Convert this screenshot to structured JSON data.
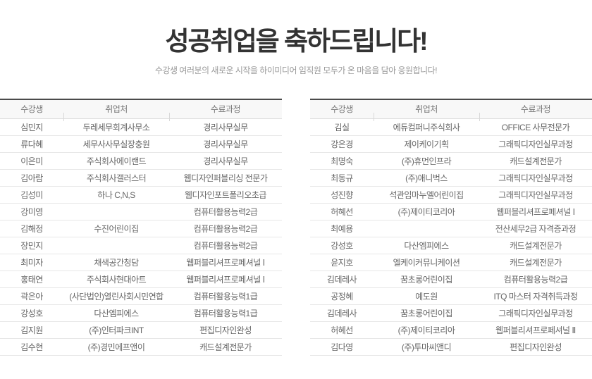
{
  "header": {
    "title": "성공취업을 축하드립니다!",
    "subtitle": "수강생 여러분의 새로운 시작을 하이미디어 임직원 모두가 온 마음을 담아 응원합니다!"
  },
  "colors": {
    "title": "#333333",
    "subtitle": "#9a9a9a",
    "table_top_border": "#4a4a4a",
    "header_bg": "#f8f8f8",
    "header_text": "#777777",
    "row_border": "#e7e7e7",
    "cell_text": "#666666"
  },
  "tables": [
    {
      "name": "left",
      "columns": [
        "수강생",
        "취업처",
        "수료과정"
      ],
      "rows": [
        [
          "심민지",
          "두레세무회계사무소",
          "경리사무실무"
        ],
        [
          "류다혜",
          "세무사사무실장충원",
          "경리사무실무"
        ],
        [
          "이은미",
          "주식회사에이랜드",
          "경리사무실무"
        ],
        [
          "김아람",
          "주식회사갤러스터",
          "웹디자인퍼블리싱 전문가"
        ],
        [
          "김성미",
          "하나  C,N,S",
          "웹디자인포트폴리오초급"
        ],
        [
          "강미영",
          "",
          "컴퓨터활용능력2급"
        ],
        [
          "김해정",
          "수진어린이집",
          "컴퓨터활용능력2급"
        ],
        [
          "장민지",
          "",
          "컴퓨터활용능력2급"
        ],
        [
          "최미자",
          "채색공간청담",
          "웹퍼블리셔프로페셔널 Ⅰ"
        ],
        [
          "홍태연",
          "주식회사현대아트",
          "웹퍼블리셔프로페셔널 Ⅰ"
        ],
        [
          "곽은아",
          "(사단법인)열린사회시민연합",
          "컴퓨터활용능력1급"
        ],
        [
          "강성호",
          "다산엠피에스",
          "컴퓨터활용능력1급"
        ],
        [
          "김지원",
          "(주)인터파크INT",
          "편집디자인완성"
        ],
        [
          "김수현",
          "(주)경민에프앤이",
          "캐드설계전문가"
        ]
      ]
    },
    {
      "name": "right",
      "columns": [
        "수강생",
        "취업처",
        "수료과정"
      ],
      "rows": [
        [
          "김실",
          "에듀컴퍼니주식회사",
          "OFFICE 사무전문가"
        ],
        [
          "강은경",
          "제이케이기획",
          "그래픽디자인실무과정"
        ],
        [
          "최명숙",
          "(주)휴먼인프라",
          "캐드설계전문가"
        ],
        [
          "최동규",
          "(주)애니벅스",
          "그래픽디자인실무과정"
        ],
        [
          "성진향",
          "석관임마누엘어린이집",
          "그래픽디자인실무과정"
        ],
        [
          "허혜선",
          "(주)제이티코리아",
          "웹퍼블리셔프로페셔널 Ⅰ"
        ],
        [
          "최예용",
          "",
          "전산세무2급 자격증과정"
        ],
        [
          "강성호",
          "다산엠피에스",
          "캐드설계전문가"
        ],
        [
          "윤지호",
          "엘케이커뮤니케이션",
          "캐드설계전문가"
        ],
        [
          "김데레사",
          "꿈초롱어린이집",
          "컴퓨터활용능력2급"
        ],
        [
          "공정혜",
          "예도원",
          "ITQ 마스터 자격취득과정"
        ],
        [
          "김데레사",
          "꿈초롱어린이집",
          "그래픽디자인실무과정"
        ],
        [
          "허혜선",
          "(주)제이티코리아",
          "웹퍼블리셔프로페셔널 Ⅱ"
        ],
        [
          "김다영",
          "(주)투마씨앤디",
          "편집디자인완성"
        ]
      ]
    }
  ]
}
